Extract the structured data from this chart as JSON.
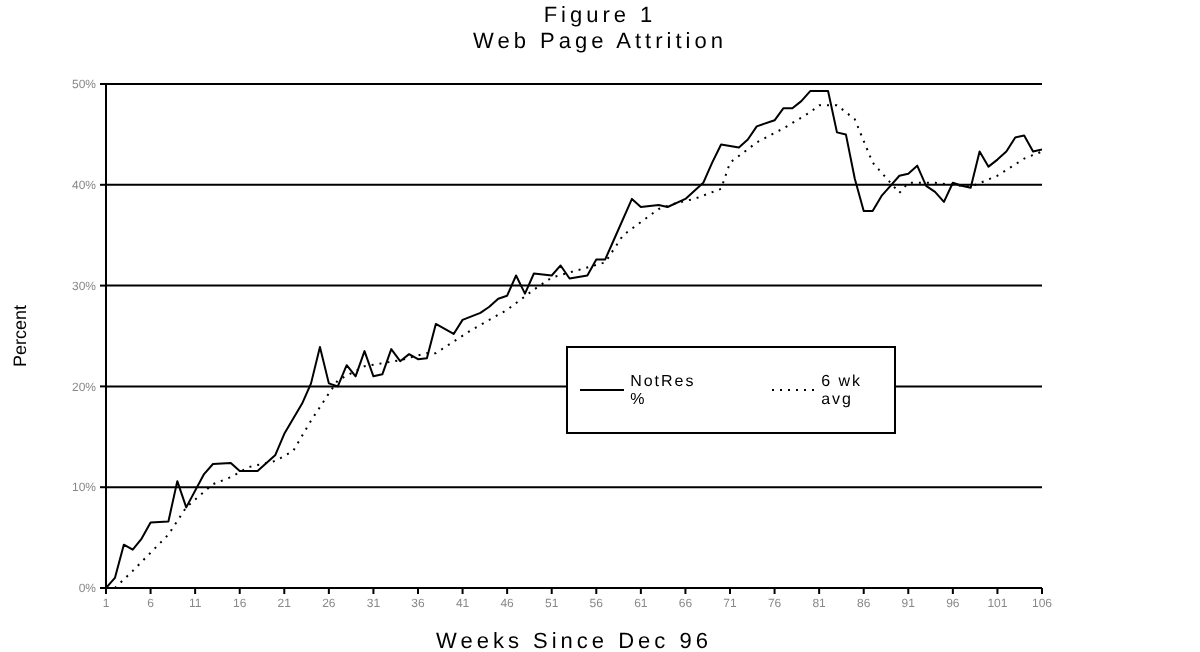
{
  "chart_data": {
    "type": "line",
    "title": "Figure 1",
    "subtitle": "Web Page Attrition",
    "xlabel": "Weeks Since Dec 96",
    "ylabel": "Percent",
    "xlim": [
      1,
      106
    ],
    "xticks": [
      1,
      6,
      11,
      16,
      21,
      26,
      31,
      36,
      41,
      46,
      51,
      56,
      61,
      66,
      71,
      76,
      81,
      86,
      91,
      96,
      101,
      106
    ],
    "ylim": [
      0,
      50
    ],
    "yticks": [
      {
        "value": 0,
        "label": "0%"
      },
      {
        "value": 10,
        "label": "10%"
      },
      {
        "value": 20,
        "label": "20%"
      },
      {
        "value": 30,
        "label": "30%"
      },
      {
        "value": 40,
        "label": "40%"
      },
      {
        "value": 50,
        "label": "50%"
      }
    ],
    "grid": "y",
    "legend": "right",
    "marker": "none",
    "series": [
      {
        "name": "NotRes %",
        "color": "#000000",
        "line_style": "solid",
        "x": [
          1,
          2,
          3,
          4,
          5,
          6,
          8,
          9,
          10,
          12,
          13,
          15,
          16,
          18,
          20,
          21,
          23,
          24,
          25,
          26,
          27,
          28,
          29,
          30,
          31,
          32,
          33,
          34,
          35,
          36,
          37,
          38,
          40,
          41,
          43,
          44,
          45,
          46,
          47,
          48,
          49,
          51,
          52,
          53,
          55,
          56,
          57,
          58,
          60,
          61,
          63,
          64,
          66,
          68,
          69,
          70,
          72,
          73,
          74,
          76,
          77,
          78,
          79,
          80,
          82,
          83,
          84,
          85,
          86,
          87,
          88,
          89,
          90,
          91,
          92,
          93,
          94,
          95,
          96,
          97,
          98,
          99,
          100,
          101,
          102,
          103,
          104,
          105,
          106
        ],
        "values": [
          0,
          1,
          4.3,
          3.8,
          4.9,
          6.5,
          6.6,
          10.6,
          8,
          11.3,
          12.3,
          12.4,
          11.6,
          11.6,
          13.2,
          15.3,
          18.3,
          20.3,
          23.9,
          20.3,
          20,
          22.1,
          21,
          23.5,
          21,
          21.2,
          23.7,
          22.5,
          23.2,
          22.7,
          22.8,
          26.2,
          25.2,
          26.6,
          27.3,
          27.9,
          28.7,
          29,
          31,
          29.2,
          31.2,
          31,
          32,
          30.7,
          31,
          32.6,
          32.6,
          34.6,
          38.6,
          37.8,
          38,
          37.8,
          38.6,
          40.2,
          42.2,
          44,
          43.7,
          44.5,
          45.8,
          46.4,
          47.6,
          47.6,
          48.3,
          49.3,
          49.3,
          45.2,
          45,
          40.6,
          37.4,
          37.4,
          38.9,
          39.9,
          40.9,
          41.1,
          41.9,
          39.9,
          39.3,
          38.3,
          40.2,
          39.9,
          39.7,
          43.3,
          41.8,
          42.5,
          43.3,
          44.7,
          44.9,
          43.3,
          43.5
        ]
      },
      {
        "name": "6 wk avg",
        "color": "#000000",
        "line_style": "dotted",
        "x": [
          2,
          4,
          8,
          10,
          13,
          15,
          17,
          20,
          22,
          24,
          26,
          27,
          30,
          34,
          37,
          38,
          42,
          46,
          49,
          51,
          57,
          59,
          63,
          65,
          67,
          70,
          71,
          74,
          77,
          80,
          81,
          83,
          85,
          87,
          89,
          90,
          91,
          94,
          96,
          98,
          101,
          104,
          106
        ],
        "values": [
          0,
          1.7,
          5.3,
          8,
          10.3,
          11,
          12,
          12.6,
          13.6,
          16.6,
          19.3,
          20.6,
          22,
          22.6,
          23.3,
          23.3,
          25.6,
          27.6,
          29.6,
          30.8,
          32.3,
          35,
          37.6,
          38.2,
          38.6,
          39.6,
          42.2,
          44.2,
          45.6,
          47.2,
          47.9,
          47.9,
          46.5,
          42.2,
          40.2,
          39.2,
          40.2,
          40.2,
          40,
          39.8,
          40.9,
          42.6,
          43.3
        ]
      }
    ]
  }
}
